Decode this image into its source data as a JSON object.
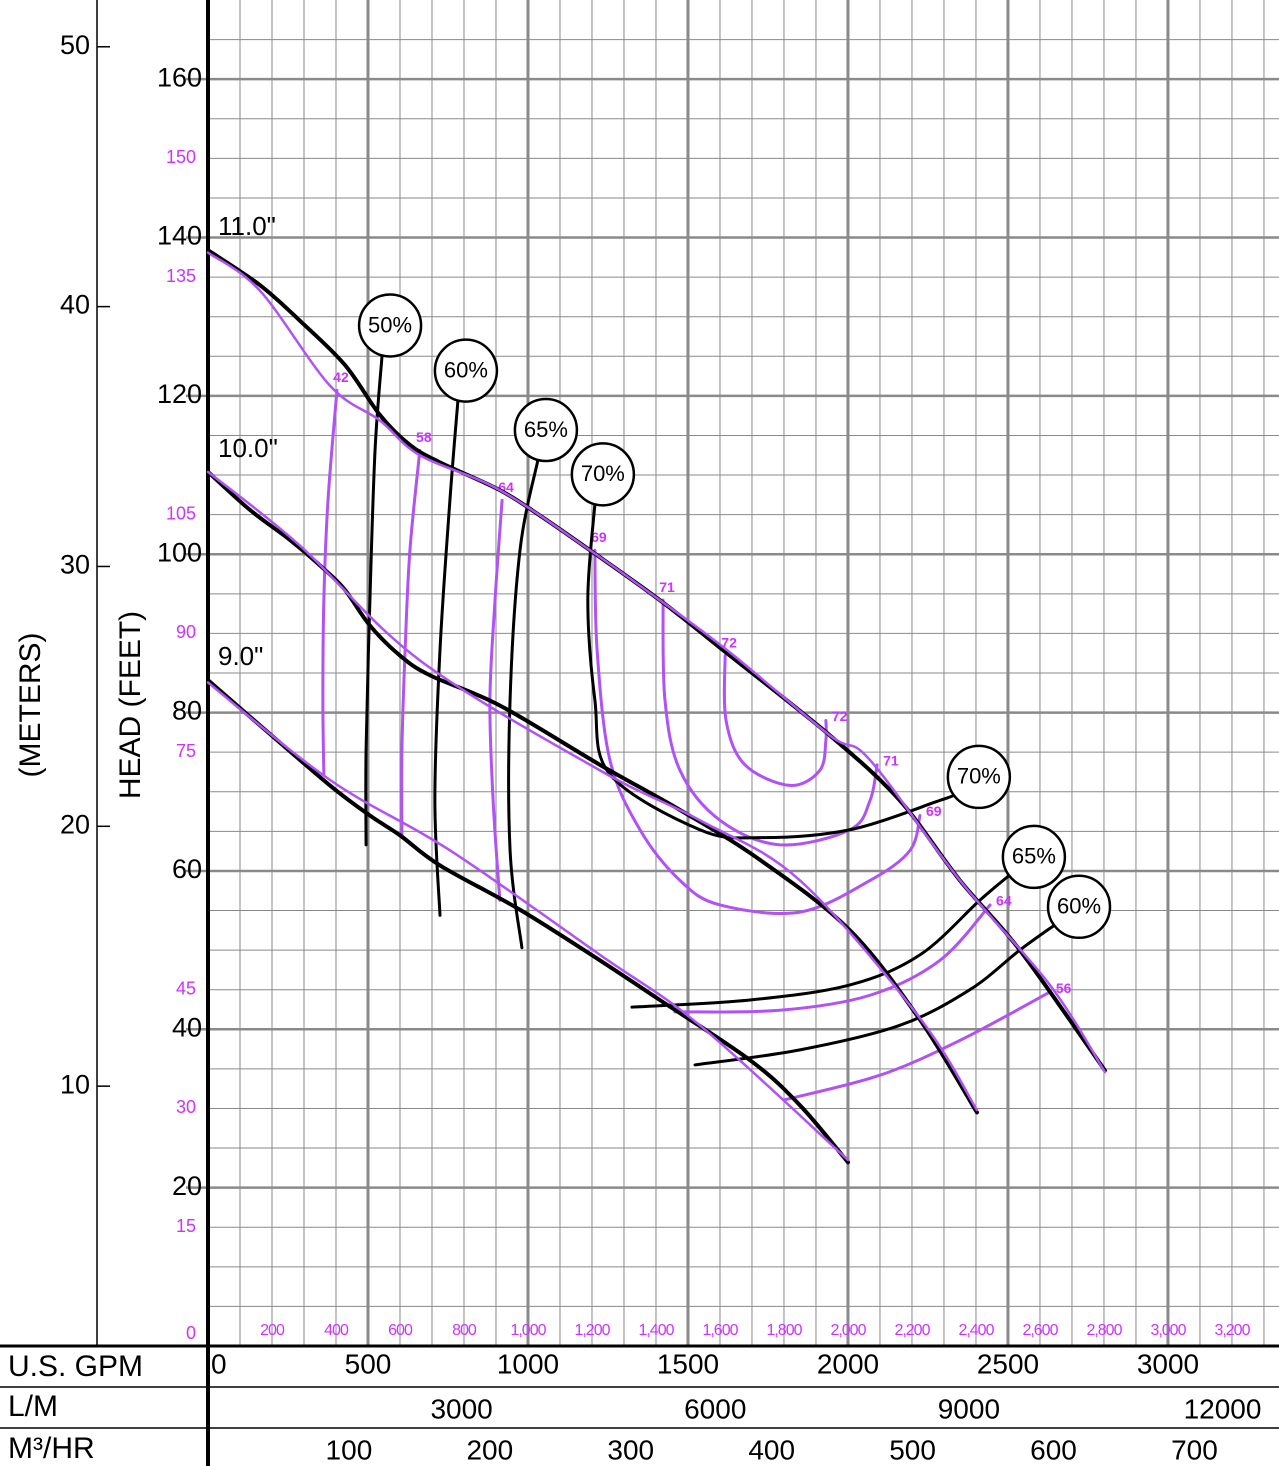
{
  "chart_data": {
    "type": "line",
    "x_label": "U.S. GPM",
    "y_label": "HEAD (FEET)",
    "y2_label": "(METERS)",
    "x2_label": "L/M",
    "x3_label": "M³/HR",
    "xlim": [
      0,
      3347
    ],
    "xticks": [
      0,
      500,
      1000,
      1500,
      2000,
      2500,
      3000
    ],
    "ylim": [
      0,
      170
    ],
    "yticks": [
      20,
      40,
      60,
      80,
      100,
      120,
      140,
      160
    ],
    "y2lim": [
      0,
      51.8
    ],
    "y2ticks": [
      10,
      20,
      30,
      40,
      50
    ],
    "x2lim": [
      0,
      12668
    ],
    "x2ticks": [
      3000,
      6000,
      9000,
      12000
    ],
    "x3lim": [
      0,
      760
    ],
    "x3ticks": [
      100,
      200,
      300,
      400,
      500,
      600,
      700
    ],
    "alt_color": "#cc33ff",
    "alt_xticks": [
      200,
      400,
      600,
      800,
      {
        "value": 1000,
        "label": "1,000"
      },
      {
        "value": 1200,
        "label": "1,200"
      },
      {
        "value": 1400,
        "label": "1,400"
      },
      {
        "value": 1600,
        "label": "1,600"
      },
      {
        "value": 1800,
        "label": "1,800"
      },
      {
        "value": 2000,
        "label": "2,000"
      },
      {
        "value": 2200,
        "label": "2,200"
      },
      {
        "value": 2400,
        "label": "2,400"
      },
      {
        "value": 2600,
        "label": "2,600"
      },
      {
        "value": 2800,
        "label": "2,800"
      },
      {
        "value": 3000,
        "label": "3,000"
      },
      {
        "value": 3200,
        "label": "3,200"
      }
    ],
    "alt_yticks": [
      0,
      15,
      30,
      45,
      75,
      90,
      105,
      135,
      150
    ],
    "grid": true,
    "grid_color": "#8a8a8a",
    "xminor": [
      100,
      200,
      300,
      400,
      500,
      600,
      700,
      800,
      900,
      1000,
      1100,
      1200,
      1300,
      1400,
      1500,
      1600,
      1700,
      1800,
      1900,
      2000,
      2100,
      2200,
      2300,
      2400,
      2500,
      2600,
      2700,
      2800,
      2900,
      3000,
      3100,
      3200,
      3300
    ],
    "yminor": [
      5,
      10,
      15,
      20,
      25,
      30,
      35,
      40,
      45,
      50,
      55,
      60,
      65,
      70,
      75,
      80,
      85,
      90,
      95,
      100,
      105,
      110,
      115,
      120,
      125,
      130,
      135,
      140,
      145,
      150,
      155,
      160,
      165
    ],
    "series": [
      {
        "name": "11.0\"",
        "kind": "impeller",
        "color": "#000000",
        "x": [
          0,
          162,
          287,
          428,
          537,
          631,
          725,
          912,
          1037,
          1194,
          1412,
          1631,
          1944,
          2162,
          2350,
          2537,
          2803
        ],
        "y": [
          138.4,
          134,
          129.5,
          123.9,
          117.6,
          113.8,
          111.6,
          108.1,
          104.9,
          100.5,
          94.2,
          87.2,
          77.1,
          68.9,
          58.8,
          50,
          34.8
        ],
        "overlay": {
          "color": "#b052f5",
          "x": [
            0,
            162,
            381,
            537,
            662,
            912,
            1194,
            1412,
            1631,
            1944,
            2069,
            2350,
            2631,
            2803
          ],
          "y": [
            138.1,
            133.3,
            121.3,
            116.9,
            112.5,
            108.1,
            100.5,
            94.2,
            87.6,
            77.1,
            74,
            58.8,
            45.6,
            34.6
          ]
        }
      },
      {
        "name": "10.0\"",
        "kind": "impeller",
        "color": "#000000",
        "x": [
          0,
          131,
          256,
          366,
          428,
          506,
          600,
          694,
          912,
          1225,
          1475,
          1725,
          2006,
          2225,
          2403
        ],
        "y": [
          110.4,
          105.6,
          101.8,
          98,
          95.5,
          91,
          87.2,
          84.7,
          80.9,
          73.4,
          67.7,
          61.4,
          52.5,
          41.2,
          29.5
        ],
        "overlay": {
          "color": "#b052f5",
          "x": [
            0,
            287,
            662,
            1225,
            1537,
            1850,
            2225,
            2403
          ],
          "y": [
            110.4,
            101.1,
            86.6,
            72.7,
            66.4,
            58.8,
            41.4,
            29.8
          ]
        }
      },
      {
        "name": "9.0\"",
        "kind": "impeller",
        "color": "#000000",
        "x": [
          0,
          162,
          381,
          506,
          600,
          725,
          975,
          1225,
          1412,
          1694,
          1850,
          2000
        ],
        "y": [
          84.1,
          78.4,
          70.8,
          67,
          64.5,
          60.7,
          55.1,
          48.7,
          43.7,
          36.1,
          30.4,
          23.2
        ],
        "overlay": {
          "color": "#b052f5",
          "x": [
            0,
            381,
            756,
            1225,
            1537,
            2000
          ],
          "y": [
            83.8,
            71.5,
            62.6,
            49.4,
            40.5,
            23.5
          ]
        }
      },
      {
        "name": "50%",
        "kind": "efficiency",
        "color": "#000000",
        "label_at": [
          "start"
        ],
        "x": [
          544,
          522,
          506,
          494,
          494
        ],
        "y": [
          125.1,
          113.1,
          94.2,
          75.3,
          63.3
        ]
      },
      {
        "name": "60%",
        "kind": "efficiency",
        "color": "#000000",
        "label_at": [
          "start"
        ],
        "x": [
          781,
          756,
          725,
          709,
          725
        ],
        "y": [
          119.4,
          106.8,
          87.9,
          69,
          54.4
        ]
      },
      {
        "name": "65%",
        "kind": "efficiency",
        "color": "#000000",
        "label_at": [
          "start"
        ],
        "x": [
          1031,
          975,
          944,
          944,
          981
        ],
        "y": [
          111.9,
          100.5,
          81.6,
          62.6,
          50.3
        ]
      },
      {
        "name": "70%",
        "kind": "efficiency",
        "color": "#000000",
        "label_at": [
          "start",
          "end"
        ],
        "x": [
          1209,
          1187,
          1209,
          1256,
          1537,
          1725,
          2006,
          2287,
          2334
        ],
        "y": [
          106.3,
          94.2,
          81.6,
          72.2,
          65.2,
          64.2,
          65.2,
          68.9,
          69.6
        ]
      },
      {
        "name": "65%",
        "kind": "efficiency",
        "color": "#000000",
        "label_at": [
          "end"
        ],
        "x": [
          1325,
          1694,
          2006,
          2225,
          2412,
          2506
        ],
        "y": [
          42.8,
          43.7,
          45.6,
          49.4,
          56.3,
          59.5
        ]
      },
      {
        "name": "60%",
        "kind": "efficiency",
        "color": "#000000",
        "label_at": [
          "end"
        ],
        "x": [
          1522,
          1850,
          2162,
          2381,
          2537,
          2647
        ],
        "y": [
          35.5,
          37.4,
          40.5,
          45,
          50,
          53.2
        ]
      },
      {
        "name": "42",
        "kind": "contour",
        "color": "#b052f5",
        "label_at": [
          "start"
        ],
        "x": [
          403,
          375,
          362,
          359,
          362
        ],
        "y": [
          120.7,
          106.8,
          94.2,
          81.6,
          72.2
        ]
      },
      {
        "name": "58",
        "kind": "contour",
        "color": "#b052f5",
        "label_at": [
          "start"
        ],
        "x": [
          662,
          631,
          616,
          606,
          606
        ],
        "y": [
          113.1,
          100.5,
          87.9,
          75.3,
          64.5
        ]
      },
      {
        "name": "64",
        "kind": "contour",
        "color": "#b052f5",
        "label_at": [
          "start"
        ],
        "x": [
          919,
          897,
          881,
          891,
          912
        ],
        "y": [
          106.8,
          94.2,
          81.6,
          68.9,
          56.3
        ]
      },
      {
        "name": "69",
        "kind": "contour",
        "color": "#b052f5",
        "label_at": [
          "start",
          "end"
        ],
        "x": [
          1209,
          1216,
          1256,
          1350,
          1475,
          1600,
          1850,
          2069,
          2194,
          2225
        ],
        "y": [
          100.5,
          87.9,
          74,
          65.2,
          58.8,
          55.7,
          54.8,
          58.8,
          62.6,
          67
        ]
      },
      {
        "name": "71",
        "kind": "contour",
        "color": "#b052f5",
        "label_at": [
          "start",
          "end"
        ],
        "x": [
          1422,
          1428,
          1475,
          1600,
          1787,
          2006,
          2069,
          2091
        ],
        "y": [
          94.2,
          81.6,
          72.7,
          66.4,
          63.3,
          65.2,
          68.9,
          73.4
        ]
      },
      {
        "name": "72",
        "kind": "contour",
        "color": "#b052f5",
        "label_at": [
          "start",
          "end"
        ],
        "x": [
          1616,
          1619,
          1678,
          1819,
          1912,
          1931,
          1931
        ],
        "y": [
          87.2,
          79,
          73.4,
          70.8,
          72.7,
          76.5,
          79
        ]
      },
      {
        "name": "64",
        "kind": "contour",
        "color": "#b052f5",
        "label_at": [
          "end"
        ],
        "x": [
          1459,
          1787,
          2069,
          2287,
          2444
        ],
        "y": [
          42.2,
          42.4,
          44.3,
          48.7,
          55.7
        ]
      },
      {
        "name": "56",
        "kind": "contour",
        "color": "#b052f5",
        "label_at": [
          "end"
        ],
        "x": [
          1803,
          2100,
          2350,
          2631
        ],
        "y": [
          31.1,
          34.2,
          38.6,
          44.7
        ]
      }
    ]
  }
}
